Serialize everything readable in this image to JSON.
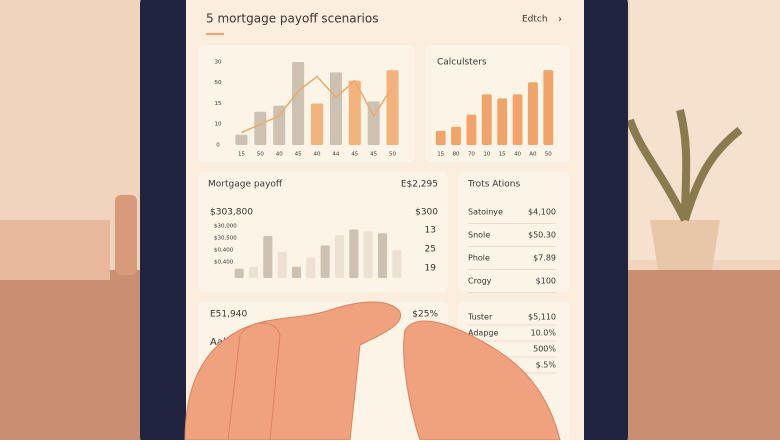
{
  "header": {
    "title": "5 mortgage payoff scenarios",
    "action": "Edtch"
  },
  "chart_a": {
    "type": "bar",
    "categories": [
      "15",
      "50",
      "40",
      "45",
      "40",
      "44",
      "45",
      "45",
      "50"
    ],
    "values": [
      10,
      32,
      38,
      80,
      40,
      70,
      62,
      42,
      72
    ],
    "colors": [
      "#cdc2b2",
      "#cdc2b2",
      "#cdc2b2",
      "#cdc2b2",
      "#f2b47c",
      "#cdc2b2",
      "#f2b47c",
      "#cdc2b2",
      "#f2b47c"
    ],
    "line": [
      12,
      20,
      28,
      52,
      66,
      46,
      62,
      28,
      56
    ],
    "line_color": "#eea96a",
    "ylim": [
      0,
      80
    ],
    "axis_labels": [
      "30",
      "50",
      "15",
      "10",
      "0"
    ]
  },
  "chart_b": {
    "type": "bar",
    "title": "Calculsters",
    "categories": [
      "15",
      "80",
      "70",
      "10",
      "15",
      "40",
      "A0",
      "50"
    ],
    "values": [
      14,
      18,
      30,
      50,
      46,
      50,
      62,
      74
    ],
    "color": "#f0a46a",
    "ylim": [
      0,
      80
    ]
  },
  "chart_c": {
    "type": "bar",
    "title": "Mortgage payoff",
    "total": "E$2,295",
    "left_value": "$303,800",
    "right_value": "$300",
    "side_labels": [
      "13",
      "25",
      "19"
    ],
    "legend": [
      "$30,000",
      "$30,500",
      "$0,400",
      "$0,400"
    ],
    "values": [
      10,
      12,
      45,
      28,
      12,
      22,
      35,
      46,
      52,
      50,
      48,
      30
    ],
    "colors": [
      "#cdc2b2",
      "#ece1d2",
      "#cdc2b2",
      "#ece1d2",
      "#cdc2b2",
      "#ece1d2",
      "#cdc2b2",
      "#ece1d2",
      "#cdc2b2",
      "#ece1d2",
      "#cdc2b2",
      "#ece1d2"
    ],
    "ylim": [
      0,
      60
    ]
  },
  "transactions": {
    "title": "Trots Ations",
    "rows": [
      [
        "Satoinye",
        "$4,100"
      ],
      [
        "Snole",
        "$50.30"
      ],
      [
        "Phole",
        "$7.89"
      ],
      [
        "Crogy",
        "$100"
      ]
    ]
  },
  "summary": {
    "left": "E51,940",
    "right": "$25%",
    "label": "Aald"
  },
  "details": {
    "rows": [
      [
        "Tuster",
        "$5,110"
      ],
      [
        "Adapge",
        "10.0%"
      ],
      [
        "",
        "500%"
      ],
      [
        "",
        "$.5%"
      ]
    ]
  }
}
